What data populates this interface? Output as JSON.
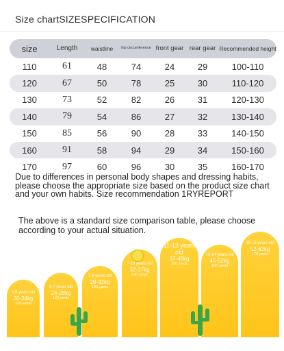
{
  "title": "Size chartSIZESPECIFICATION",
  "table": {
    "headers": {
      "size": "size",
      "length": "Length",
      "waistline": "waistline",
      "hip": "hip circumference",
      "front_gear": "front gear",
      "rear_gear": "rear gear",
      "height": "Recommended height"
    },
    "rows": [
      {
        "size": "110",
        "length": "61",
        "waist": "48",
        "hip": "74",
        "front": "24",
        "rear": "29",
        "height": "100-110"
      },
      {
        "size": "120",
        "length": "67",
        "waist": "50",
        "hip": "78",
        "front": "25",
        "rear": "30",
        "height": "110-120"
      },
      {
        "size": "130",
        "length": "73",
        "waist": "52",
        "hip": "82",
        "front": "26",
        "rear": "31",
        "height": "120-130"
      },
      {
        "size": "140",
        "length": "79",
        "waist": "54",
        "hip": "86",
        "front": "27",
        "rear": "32",
        "height": "130-140"
      },
      {
        "size": "150",
        "length": "85",
        "waist": "56",
        "hip": "90",
        "front": "28",
        "rear": "33",
        "height": "140-150"
      },
      {
        "size": "160",
        "length": "91",
        "waist": "58",
        "hip": "94",
        "front": "29",
        "rear": "34",
        "height": "150-160"
      },
      {
        "size": "170",
        "length": "97",
        "waist": "60",
        "hip": "96",
        "front": "30",
        "rear": "35",
        "height": "160-170"
      }
    ]
  },
  "disclaimer": "Due to differences in personal body shapes and dressing habits, please choose the appropriate size based on the product size chart and your own habits. Size recommendation 1RYREPORT",
  "note": "The above is a standard size comparison table, please choose according to your actual situation.",
  "chart": {
    "colors": {
      "arch": "#ffc41a",
      "cactus": "#3aa64a"
    },
    "bars": [
      {
        "age": "3-5 years old",
        "weight": "20-24kg",
        "height": "110 yards"
      },
      {
        "age": "6-7 years old",
        "weight": "24-28kg",
        "height": "120 yards"
      },
      {
        "age": "7-9 years old",
        "weight": "28-32kg",
        "height": "130 yards"
      },
      {
        "age": "7-10 years old",
        "weight": "32-37kg",
        "height": "140 yards"
      },
      {
        "age": "11-12 years old",
        "weight": "37-45kg",
        "height": "150 yards"
      },
      {
        "age": "13-14 years old",
        "weight": "45-52kg",
        "height": "160 yards"
      },
      {
        "age": "15-16 years old",
        "weight": "52-62kg",
        "height": "170 yards"
      }
    ]
  }
}
